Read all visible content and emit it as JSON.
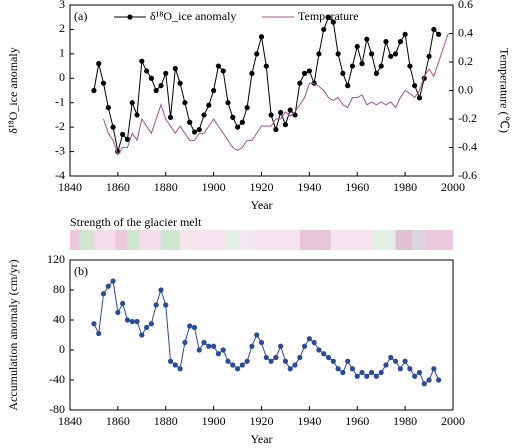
{
  "chart_data": [
    {
      "type": "line",
      "panel_label": "(a)",
      "xlabel": "Year",
      "ylabel": "δ¹⁸O_ice anomaly",
      "y2label": "Temperature (℃)",
      "xlim": [
        1840,
        2000
      ],
      "xticks": [
        1840,
        1860,
        1880,
        1900,
        1920,
        1940,
        1960,
        1980,
        2000
      ],
      "ylim": [
        -4,
        3
      ],
      "yticks": [
        -4,
        -3,
        -2,
        -1,
        0,
        1,
        2,
        3
      ],
      "y2lim": [
        -0.6,
        0.6
      ],
      "y2ticks": [
        -0.6,
        -0.4,
        -0.2,
        {
          "value": 0,
          "label": "0.0"
        },
        0.2,
        0.4,
        0.6
      ],
      "series": [
        {
          "name": "δ¹⁸O_ice anomaly",
          "color": "#000000",
          "marker": "circle",
          "x": [
            1850,
            1852,
            1854,
            1856,
            1858,
            1860,
            1862,
            1864,
            1866,
            1868,
            1870,
            1872,
            1874,
            1876,
            1878,
            1880,
            1882,
            1884,
            1886,
            1888,
            1890,
            1892,
            1894,
            1896,
            1898,
            1900,
            1902,
            1904,
            1906,
            1908,
            1910,
            1912,
            1914,
            1916,
            1918,
            1920,
            1922,
            1924,
            1926,
            1928,
            1930,
            1932,
            1934,
            1936,
            1938,
            1940,
            1942,
            1944,
            1946,
            1948,
            1950,
            1952,
            1954,
            1956,
            1958,
            1960,
            1962,
            1964,
            1966,
            1968,
            1970,
            1972,
            1974,
            1976,
            1978,
            1980,
            1982,
            1984,
            1986,
            1988,
            1990,
            1992,
            1994
          ],
          "values": [
            -0.5,
            0.6,
            -0.2,
            -1.2,
            -2.0,
            -3.0,
            -2.3,
            -2.5,
            -1.0,
            -1.5,
            0.7,
            0.3,
            0.0,
            -0.5,
            -0.3,
            0.2,
            -1.6,
            0.4,
            -0.2,
            -1.0,
            -1.8,
            -2.2,
            -2.1,
            -1.5,
            -1.1,
            -0.5,
            0.5,
            0.3,
            -1.0,
            -1.6,
            -2.0,
            -1.8,
            -1.2,
            0.2,
            1.0,
            1.7,
            0.5,
            -1.5,
            -2.1,
            -1.4,
            -1.9,
            -1.3,
            -1.5,
            -0.2,
            0.2,
            0.3,
            -0.2,
            1.0,
            2.0,
            2.5,
            2.3,
            1.0,
            0.2,
            -0.3,
            0.5,
            1.3,
            0.6,
            1.6,
            1.0,
            0.2,
            0.5,
            1.5,
            0.9,
            1.0,
            1.5,
            1.8,
            0.5,
            -0.3,
            -0.8,
            0.0,
            0.9,
            2.0,
            1.8
          ]
        },
        {
          "name": "Temperature",
          "color": "#a0508a",
          "axis": "y2",
          "x": [
            1854,
            1856,
            1858,
            1860,
            1862,
            1864,
            1866,
            1868,
            1870,
            1872,
            1874,
            1876,
            1878,
            1880,
            1882,
            1884,
            1886,
            1888,
            1890,
            1892,
            1894,
            1896,
            1898,
            1900,
            1902,
            1904,
            1906,
            1908,
            1910,
            1912,
            1914,
            1916,
            1918,
            1920,
            1922,
            1924,
            1926,
            1928,
            1930,
            1932,
            1934,
            1936,
            1938,
            1940,
            1942,
            1944,
            1946,
            1948,
            1950,
            1952,
            1954,
            1956,
            1958,
            1960,
            1962,
            1964,
            1966,
            1968,
            1970,
            1972,
            1974,
            1976,
            1978,
            1980,
            1982,
            1984,
            1986,
            1988,
            1990,
            1992,
            1994,
            1996,
            1998
          ],
          "values": [
            -0.2,
            -0.3,
            -0.35,
            -0.45,
            -0.4,
            -0.4,
            -0.3,
            -0.35,
            -0.2,
            -0.25,
            -0.3,
            -0.2,
            -0.1,
            -0.2,
            -0.25,
            -0.3,
            -0.25,
            -0.3,
            -0.35,
            -0.35,
            -0.3,
            -0.3,
            -0.25,
            -0.2,
            -0.25,
            -0.3,
            -0.35,
            -0.4,
            -0.42,
            -0.4,
            -0.35,
            -0.35,
            -0.3,
            -0.25,
            -0.25,
            -0.25,
            -0.2,
            -0.2,
            -0.15,
            -0.18,
            -0.15,
            -0.1,
            -0.05,
            0.05,
            0.05,
            0.03,
            0.0,
            -0.05,
            -0.07,
            -0.05,
            -0.1,
            -0.12,
            -0.05,
            -0.05,
            -0.03,
            -0.1,
            -0.08,
            -0.1,
            -0.08,
            -0.1,
            -0.08,
            -0.12,
            -0.05,
            0.0,
            -0.02,
            -0.05,
            0.0,
            0.1,
            0.15,
            0.1,
            0.2,
            0.3,
            0.4
          ]
        }
      ],
      "melt_strip": {
        "label": "Strength of the glacier melt",
        "segments": [
          {
            "start": 1840,
            "end": 1844,
            "color": "#ecc9da"
          },
          {
            "start": 1844,
            "end": 1850,
            "color": "#cfe6cf"
          },
          {
            "start": 1850,
            "end": 1859,
            "color": "#f4dde8"
          },
          {
            "start": 1859,
            "end": 1864,
            "color": "#ecc9da"
          },
          {
            "start": 1864,
            "end": 1869,
            "color": "#cfe6cf"
          },
          {
            "start": 1869,
            "end": 1878,
            "color": "#f4dde8"
          },
          {
            "start": 1878,
            "end": 1886,
            "color": "#cfe6cf"
          },
          {
            "start": 1886,
            "end": 1905,
            "color": "#f6e3ec"
          },
          {
            "start": 1905,
            "end": 1911,
            "color": "#e4efe6"
          },
          {
            "start": 1911,
            "end": 1917,
            "color": "#f4e8ee"
          },
          {
            "start": 1917,
            "end": 1936,
            "color": "#f6e3ec"
          },
          {
            "start": 1936,
            "end": 1949,
            "color": "#e8c6d8"
          },
          {
            "start": 1949,
            "end": 1967,
            "color": "#f6e3ec"
          },
          {
            "start": 1967,
            "end": 1976,
            "color": "#e4efe6"
          },
          {
            "start": 1976,
            "end": 1983,
            "color": "#e3bfd2"
          },
          {
            "start": 1983,
            "end": 1988,
            "color": "#dcd3e3"
          },
          {
            "start": 1988,
            "end": 2000,
            "color": "#ecc9da"
          }
        ]
      }
    },
    {
      "type": "line",
      "panel_label": "(b)",
      "xlabel": "Year",
      "ylabel": "Accumulation anomaly (cm/yr)",
      "xlim": [
        1840,
        2000
      ],
      "xticks": [
        1840,
        1860,
        1880,
        1900,
        1920,
        1940,
        1960,
        1980,
        2000
      ],
      "ylim": [
        -80,
        120
      ],
      "yticks": [
        -80,
        -40,
        0,
        40,
        80,
        120
      ],
      "series": [
        {
          "name": "Accumulation anomaly",
          "color": "#2a4a9a",
          "marker": "circle",
          "x": [
            1850,
            1852,
            1854,
            1856,
            1858,
            1860,
            1862,
            1864,
            1866,
            1868,
            1870,
            1872,
            1874,
            1876,
            1878,
            1880,
            1882,
            1884,
            1886,
            1888,
            1890,
            1892,
            1894,
            1896,
            1898,
            1900,
            1902,
            1904,
            1906,
            1908,
            1910,
            1912,
            1914,
            1916,
            1918,
            1920,
            1922,
            1924,
            1926,
            1928,
            1930,
            1932,
            1934,
            1936,
            1938,
            1940,
            1942,
            1944,
            1946,
            1948,
            1950,
            1952,
            1954,
            1956,
            1958,
            1960,
            1962,
            1964,
            1966,
            1968,
            1970,
            1972,
            1974,
            1976,
            1978,
            1980,
            1982,
            1984,
            1986,
            1988,
            1990,
            1992,
            1994
          ],
          "values": [
            35,
            22,
            75,
            85,
            92,
            50,
            62,
            40,
            38,
            38,
            20,
            30,
            35,
            60,
            80,
            60,
            -15,
            -20,
            -25,
            10,
            32,
            30,
            0,
            10,
            5,
            5,
            -5,
            0,
            -15,
            -20,
            -25,
            -20,
            -15,
            5,
            20,
            10,
            -10,
            -15,
            -10,
            5,
            -15,
            -25,
            -20,
            -10,
            5,
            15,
            10,
            0,
            -5,
            -10,
            -15,
            -25,
            -30,
            -15,
            -25,
            -35,
            -30,
            -35,
            -30,
            -35,
            -30,
            -20,
            -10,
            -15,
            -25,
            -15,
            -25,
            -35,
            -30,
            -45,
            -40,
            -25,
            -40
          ]
        }
      ]
    }
  ]
}
